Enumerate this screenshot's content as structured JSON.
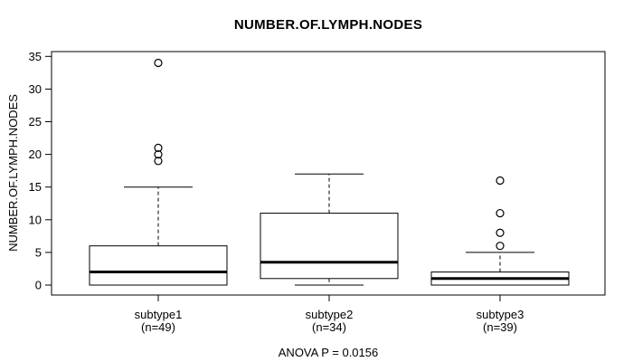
{
  "chart_data": {
    "type": "boxplot",
    "title": "NUMBER.OF.LYMPH.NODES",
    "ylabel": "NUMBER.OF.LYMPH.NODES",
    "caption": "ANOVA P = 0.0156",
    "ylim": [
      0,
      35
    ],
    "yticks": [
      0,
      5,
      10,
      15,
      20,
      25,
      30,
      35
    ],
    "grid": false,
    "legend": "none",
    "colors": {
      "stroke": "#000000",
      "box_fill": "#ffffff",
      "background": "#ffffff"
    },
    "groups": [
      {
        "label": "subtype1",
        "sublabel": "(n=49)",
        "n": 49,
        "whisker_low": 0,
        "q1": 0,
        "median": 2,
        "q3": 6,
        "whisker_high": 15,
        "outliers": [
          19,
          20,
          21,
          34
        ]
      },
      {
        "label": "subtype2",
        "sublabel": "(n=34)",
        "n": 34,
        "whisker_low": 0,
        "q1": 1,
        "median": 3.5,
        "q3": 11,
        "whisker_high": 17,
        "outliers": []
      },
      {
        "label": "subtype3",
        "sublabel": "(n=39)",
        "n": 39,
        "whisker_low": 0,
        "q1": 0,
        "median": 1,
        "q3": 2,
        "whisker_high": 5,
        "outliers": [
          6,
          8,
          11,
          16
        ]
      }
    ]
  }
}
